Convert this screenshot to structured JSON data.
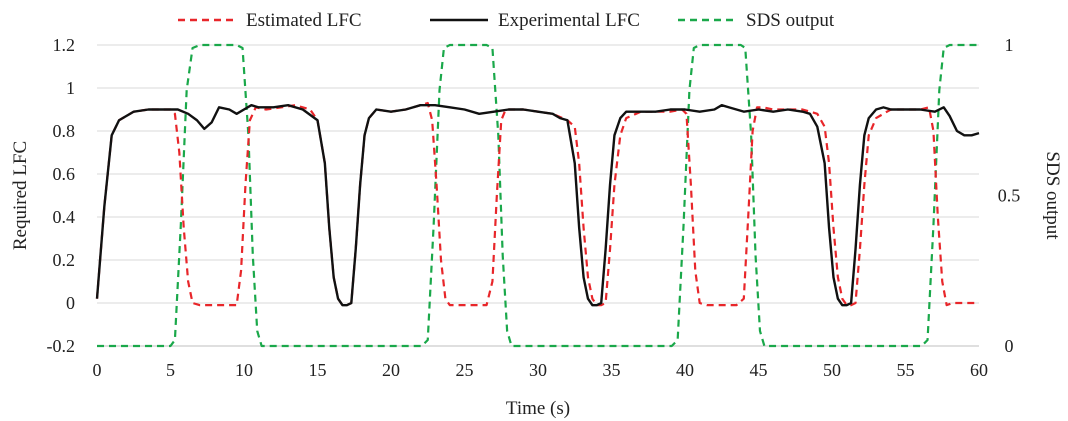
{
  "chart_data": {
    "type": "line",
    "xlabel": "Time (s)",
    "ylabel": "Required LFC",
    "y2label": "SDS output",
    "xlim": [
      0,
      60
    ],
    "ylim": [
      -0.2,
      1.2
    ],
    "y2lim": [
      0,
      1
    ],
    "xticks": [
      "0",
      "5",
      "10",
      "15",
      "20",
      "25",
      "30",
      "35",
      "40",
      "45",
      "50",
      "55",
      "60"
    ],
    "yticks": [
      "-0.2",
      "0",
      "0.2",
      "0.4",
      "0.6",
      "0.8",
      "1",
      "1.2"
    ],
    "y2ticks": [
      "0",
      "0.5",
      "1"
    ],
    "grid": "horizontal",
    "legend_position": "top",
    "series": [
      {
        "name": "Estimated LFC",
        "axis": "left",
        "style": "dashed",
        "color": "#e8262a",
        "x": [
          0,
          0.5,
          1.0,
          1.5,
          2.5,
          3.5,
          4.5,
          5.0,
          5.3,
          5.6,
          5.9,
          6.2,
          6.5,
          7.0,
          8.0,
          9.0,
          9.5,
          9.8,
          10.1,
          10.4,
          10.8,
          11.5,
          12.5,
          13.5,
          14.5,
          15.0,
          15.5,
          15.8,
          16.1,
          16.4,
          16.7,
          17.0,
          17.3,
          17.6,
          17.9,
          18.2,
          18.5,
          19.0,
          20.0,
          21.0,
          22.0,
          22.5,
          22.8,
          23.1,
          23.4,
          23.7,
          24.0,
          24.5,
          25.5,
          26.5,
          26.9,
          27.2,
          27.5,
          27.8,
          28.2,
          29.0,
          30.0,
          31.0,
          32.0,
          32.5,
          32.8,
          33.1,
          33.4,
          33.7,
          34.0,
          34.3,
          34.6,
          34.9,
          35.2,
          35.6,
          36.0,
          37.0,
          38.0,
          39.0,
          39.8,
          40.1,
          40.4,
          40.7,
          41.0,
          41.5,
          42.5,
          43.5,
          44.0,
          44.3,
          44.6,
          44.9,
          45.3,
          46.0,
          47.0,
          48.0,
          49.0,
          49.5,
          49.8,
          50.1,
          50.4,
          50.7,
          51.0,
          51.3,
          51.6,
          51.9,
          52.2,
          52.5,
          53.0,
          54.0,
          55.0,
          56.0,
          56.6,
          56.9,
          57.2,
          57.5,
          57.8,
          58.2,
          59.0,
          60.0
        ],
        "y": [
          0.02,
          0.45,
          0.78,
          0.85,
          0.89,
          0.9,
          0.9,
          0.9,
          0.88,
          0.7,
          0.35,
          0.1,
          0.0,
          -0.01,
          -0.01,
          -0.01,
          -0.01,
          0.15,
          0.55,
          0.85,
          0.91,
          0.9,
          0.91,
          0.92,
          0.9,
          0.85,
          0.65,
          0.35,
          0.12,
          0.02,
          -0.01,
          -0.01,
          0.0,
          0.25,
          0.55,
          0.78,
          0.86,
          0.9,
          0.89,
          0.9,
          0.92,
          0.93,
          0.85,
          0.55,
          0.2,
          0.02,
          -0.01,
          -0.01,
          -0.01,
          -0.01,
          0.1,
          0.5,
          0.85,
          0.9,
          0.9,
          0.9,
          0.89,
          0.88,
          0.85,
          0.82,
          0.65,
          0.35,
          0.12,
          0.02,
          -0.01,
          -0.01,
          0.0,
          0.25,
          0.55,
          0.78,
          0.86,
          0.89,
          0.89,
          0.89,
          0.9,
          0.88,
          0.55,
          0.15,
          0.0,
          -0.01,
          -0.01,
          -0.01,
          0.02,
          0.4,
          0.8,
          0.91,
          0.91,
          0.9,
          0.9,
          0.9,
          0.88,
          0.82,
          0.65,
          0.35,
          0.12,
          0.02,
          -0.01,
          -0.01,
          0.0,
          0.25,
          0.55,
          0.78,
          0.86,
          0.9,
          0.9,
          0.9,
          0.91,
          0.8,
          0.4,
          0.1,
          -0.01,
          0.0,
          0.0,
          0.0
        ]
      },
      {
        "name": "Experimental LFC",
        "axis": "left",
        "style": "solid",
        "color": "#111111",
        "x": [
          0,
          0.5,
          1.0,
          1.5,
          2.5,
          3.5,
          4.5,
          5.5,
          6.2,
          6.8,
          7.3,
          7.8,
          8.3,
          9.0,
          9.5,
          10.0,
          10.5,
          11.0,
          12.0,
          13.0,
          14.0,
          15.0,
          15.5,
          15.8,
          16.1,
          16.4,
          16.7,
          17.0,
          17.3,
          17.6,
          17.9,
          18.2,
          18.5,
          19.0,
          20.0,
          21.0,
          22.0,
          23.0,
          24.0,
          25.0,
          26.0,
          27.0,
          28.0,
          29.0,
          30.0,
          31.0,
          31.5,
          32.0,
          32.5,
          32.8,
          33.1,
          33.4,
          33.7,
          34.0,
          34.3,
          34.6,
          34.9,
          35.2,
          35.6,
          36.0,
          37.0,
          38.0,
          39.0,
          40.0,
          41.0,
          42.0,
          42.5,
          43.0,
          44.0,
          45.0,
          46.0,
          47.0,
          48.0,
          48.5,
          49.0,
          49.5,
          49.8,
          50.1,
          50.4,
          50.7,
          51.0,
          51.3,
          51.6,
          51.9,
          52.2,
          52.5,
          53.0,
          53.5,
          54.0,
          55.0,
          56.0,
          57.0,
          57.6,
          58.0,
          58.5,
          59.0,
          59.5,
          60.0
        ],
        "y": [
          0.02,
          0.45,
          0.78,
          0.85,
          0.89,
          0.9,
          0.9,
          0.9,
          0.88,
          0.85,
          0.81,
          0.84,
          0.91,
          0.9,
          0.88,
          0.9,
          0.92,
          0.91,
          0.91,
          0.92,
          0.9,
          0.85,
          0.65,
          0.35,
          0.12,
          0.02,
          -0.01,
          -0.01,
          0.0,
          0.25,
          0.55,
          0.78,
          0.86,
          0.9,
          0.89,
          0.9,
          0.92,
          0.92,
          0.91,
          0.9,
          0.88,
          0.89,
          0.9,
          0.9,
          0.89,
          0.88,
          0.86,
          0.85,
          0.65,
          0.35,
          0.12,
          0.02,
          -0.01,
          -0.01,
          0.0,
          0.25,
          0.55,
          0.78,
          0.86,
          0.89,
          0.89,
          0.89,
          0.9,
          0.9,
          0.89,
          0.9,
          0.92,
          0.91,
          0.89,
          0.9,
          0.89,
          0.9,
          0.89,
          0.88,
          0.82,
          0.65,
          0.35,
          0.12,
          0.02,
          -0.01,
          -0.01,
          0.0,
          0.25,
          0.55,
          0.78,
          0.86,
          0.9,
          0.91,
          0.9,
          0.9,
          0.9,
          0.89,
          0.91,
          0.87,
          0.8,
          0.78,
          0.78,
          0.79
        ]
      },
      {
        "name": "SDS output",
        "axis": "right",
        "style": "dashed",
        "color": "#1aa84a",
        "x": [
          0,
          5.0,
          5.3,
          5.7,
          6.1,
          6.5,
          7.0,
          9.5,
          9.9,
          10.3,
          10.6,
          10.9,
          11.2,
          22.1,
          22.5,
          22.9,
          23.3,
          23.6,
          24.0,
          26.5,
          26.9,
          27.3,
          27.6,
          27.9,
          28.2,
          39.1,
          39.5,
          39.9,
          40.3,
          40.6,
          41.0,
          43.8,
          44.1,
          44.5,
          44.8,
          45.1,
          45.4,
          56.1,
          56.5,
          56.9,
          57.3,
          57.6,
          58.0,
          60.0
        ],
        "y": [
          0,
          0,
          0.02,
          0.4,
          0.85,
          0.99,
          1,
          1,
          0.99,
          0.7,
          0.3,
          0.05,
          0,
          0,
          0.02,
          0.4,
          0.85,
          0.99,
          1,
          1,
          0.99,
          0.7,
          0.3,
          0.05,
          0,
          0,
          0.02,
          0.4,
          0.85,
          0.99,
          1,
          1,
          0.99,
          0.7,
          0.3,
          0.05,
          0,
          0,
          0.02,
          0.4,
          0.85,
          0.99,
          1,
          1
        ]
      }
    ]
  }
}
